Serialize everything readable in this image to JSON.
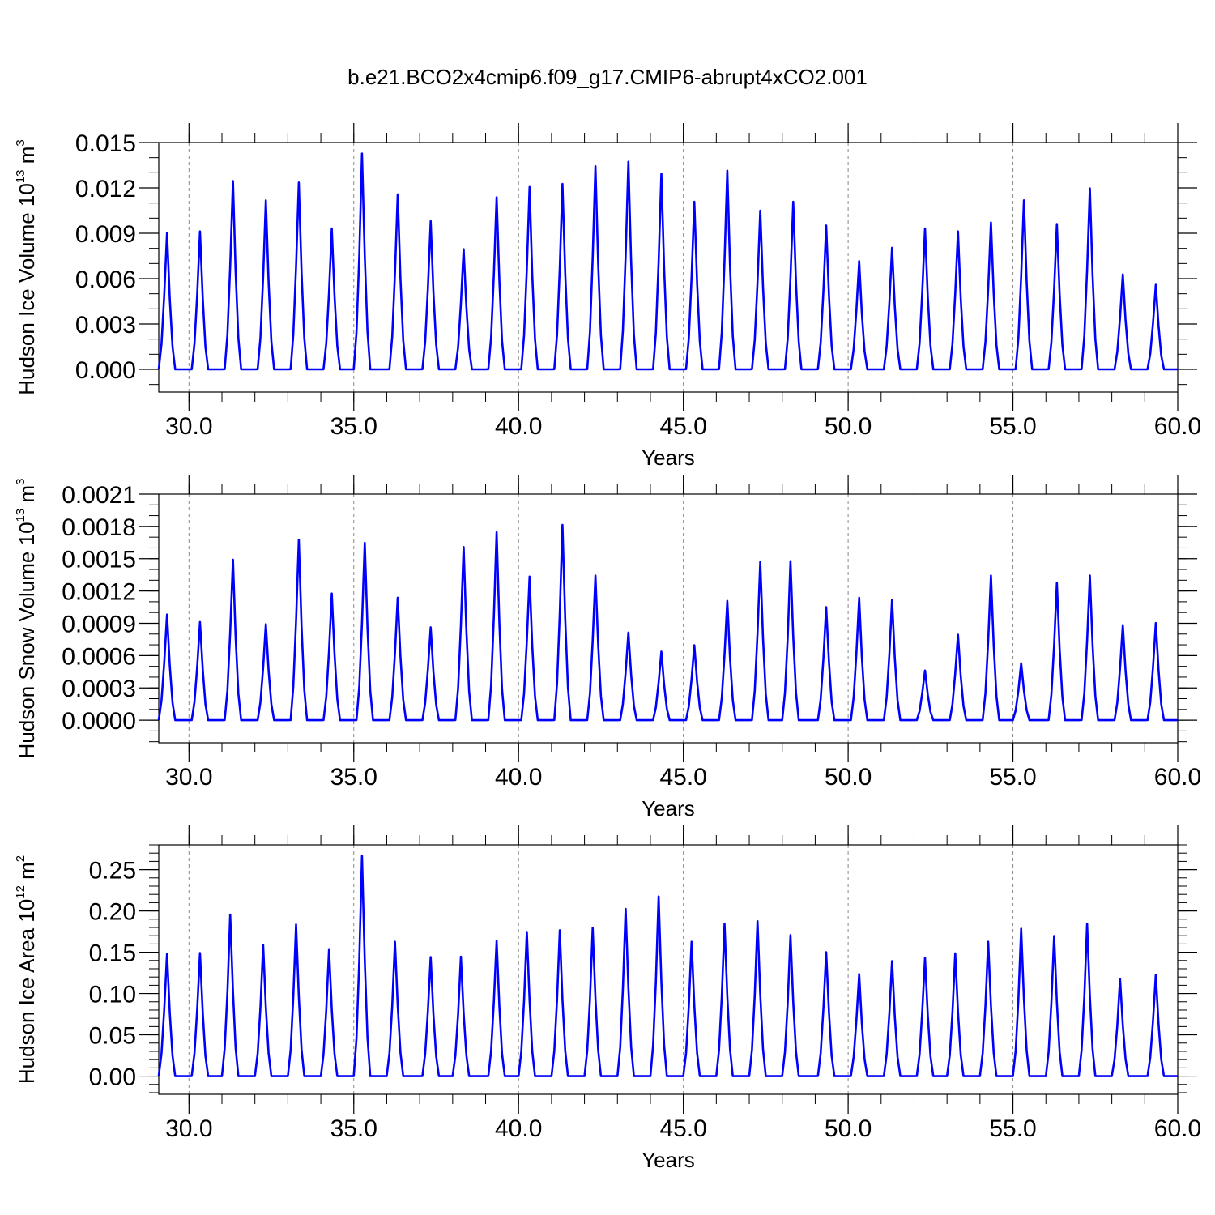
{
  "title": "b.e21.BCO2x4cmip6.f09_g17.CMIP6-abrupt4xCO2.001",
  "colors": {
    "series": "#0000ff",
    "axis": "#000000",
    "grid": "#888888"
  },
  "x_axis": {
    "label": "Years",
    "range": [
      29.083,
      60.0
    ],
    "ticks": [
      30,
      35,
      40,
      45,
      50,
      55,
      60
    ],
    "tick_labels": [
      "30.0",
      "35.0",
      "40.0",
      "45.0",
      "50.0",
      "55.0",
      "60.0"
    ],
    "minor_step": 1,
    "gridlines": [
      30,
      35,
      40,
      45,
      50,
      55
    ]
  },
  "chart_data": [
    {
      "type": "line",
      "ylabel": {
        "main": "Hudson Ice Volume 10",
        "exponent": "13",
        "unit": " m",
        "unit_exponent": "3"
      },
      "ylim": [
        -0.0015,
        0.015
      ],
      "yticks": [
        0.0,
        0.003,
        0.006,
        0.009,
        0.012,
        0.015
      ],
      "ytick_labels": [
        "0.000",
        "0.003",
        "0.006",
        "0.009",
        "0.012",
        "0.015"
      ],
      "y_minor_step": 0.001,
      "peak_years": [
        29.33,
        30.33,
        31.33,
        32.33,
        33.33,
        34.33,
        35.25,
        36.33,
        37.33,
        38.33,
        39.33,
        40.33,
        41.33,
        42.33,
        43.33,
        44.33,
        45.33,
        46.33,
        47.33,
        48.33,
        49.33,
        50.33,
        51.33,
        52.33,
        53.33,
        54.33,
        55.33,
        56.33,
        57.33,
        58.33,
        59.33
      ],
      "peaks": [
        0.0092,
        0.0093,
        0.0127,
        0.0114,
        0.0126,
        0.0095,
        0.0143,
        0.0118,
        0.01,
        0.0081,
        0.0116,
        0.0123,
        0.0125,
        0.0137,
        0.014,
        0.0132,
        0.0113,
        0.0134,
        0.0107,
        0.0113,
        0.0097,
        0.0073,
        0.0082,
        0.0095,
        0.0093,
        0.0099,
        0.0114,
        0.0098,
        0.0122,
        0.0064,
        0.0057
      ]
    },
    {
      "type": "line",
      "ylabel": {
        "main": "Hudson Snow Volume 10",
        "exponent": "13",
        "unit": " m",
        "unit_exponent": "3"
      },
      "ylim": [
        -0.00021,
        0.0021
      ],
      "yticks": [
        0.0,
        0.0003,
        0.0006,
        0.0009,
        0.0012,
        0.0015,
        0.0018,
        0.0021
      ],
      "ytick_labels": [
        "0.0000",
        "0.0003",
        "0.0006",
        "0.0009",
        "0.0012",
        "0.0015",
        "0.0018",
        "0.0021"
      ],
      "y_minor_step": 0.0001,
      "peak_years": [
        29.33,
        30.33,
        31.33,
        32.33,
        33.33,
        34.33,
        35.33,
        36.33,
        37.33,
        38.33,
        39.33,
        40.33,
        41.33,
        42.33,
        43.33,
        44.33,
        45.33,
        46.33,
        47.33,
        48.25,
        49.33,
        50.33,
        51.33,
        52.33,
        53.33,
        54.33,
        55.25,
        56.33,
        57.33,
        58.33,
        59.33
      ],
      "peaks": [
        0.001,
        0.00093,
        0.00152,
        0.00091,
        0.00171,
        0.0012,
        0.00168,
        0.00116,
        0.00088,
        0.00164,
        0.00178,
        0.00136,
        0.00185,
        0.00137,
        0.00083,
        0.00065,
        0.00071,
        0.00113,
        0.0015,
        0.00148,
        0.00107,
        0.00116,
        0.00114,
        0.00047,
        0.00081,
        0.00137,
        0.00053,
        0.0013,
        0.00137,
        0.0009,
        0.00092
      ]
    },
    {
      "type": "line",
      "ylabel": {
        "main": "Hudson Ice Area 10",
        "exponent": "12",
        "unit": " m",
        "unit_exponent": "2"
      },
      "ylim": [
        -0.022,
        0.28
      ],
      "yticks": [
        0.0,
        0.05,
        0.1,
        0.15,
        0.2,
        0.25
      ],
      "ytick_labels": [
        "0.00",
        "0.05",
        "0.10",
        "0.15",
        "0.20",
        "0.25"
      ],
      "y_minor_step": 0.01,
      "peak_years": [
        29.33,
        30.33,
        31.25,
        32.25,
        33.25,
        34.25,
        35.25,
        36.25,
        37.33,
        38.25,
        39.33,
        40.25,
        41.25,
        42.25,
        43.25,
        44.25,
        45.25,
        46.25,
        47.25,
        48.25,
        49.33,
        50.33,
        51.33,
        52.33,
        53.25,
        54.25,
        55.25,
        56.25,
        57.25,
        58.25,
        59.33
      ],
      "peaks": [
        0.151,
        0.152,
        0.196,
        0.159,
        0.184,
        0.154,
        0.267,
        0.163,
        0.147,
        0.145,
        0.167,
        0.175,
        0.177,
        0.18,
        0.203,
        0.218,
        0.163,
        0.185,
        0.188,
        0.171,
        0.153,
        0.126,
        0.142,
        0.146,
        0.149,
        0.163,
        0.179,
        0.17,
        0.185,
        0.118,
        0.125
      ]
    }
  ]
}
